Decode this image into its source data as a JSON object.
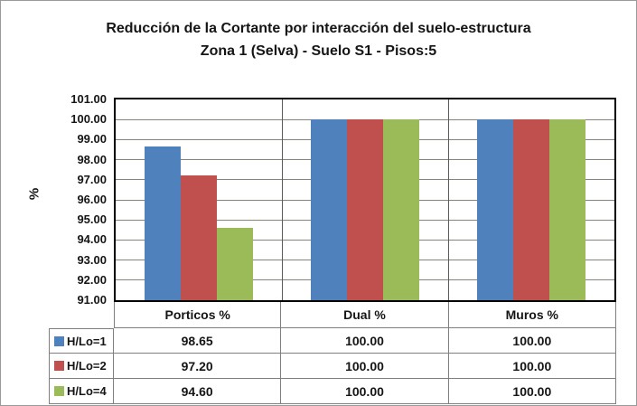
{
  "title": {
    "line1": "Reducción de la Cortante por interacción del suelo-estructura",
    "line2": "Zona 1 (Selva) - Suelo S1 - Pisos:5"
  },
  "chart_data": {
    "type": "bar",
    "title": "Reducción de la Cortante por interacción del suelo-estructura",
    "subtitle": "Zona 1 (Selva) - Suelo S1 - Pisos:5",
    "xlabel": "",
    "ylabel": "%",
    "ylim": [
      91,
      101
    ],
    "ytick_step": 1,
    "ytick_labels": [
      "101.00",
      "100.00",
      "99.00",
      "98.00",
      "97.00",
      "96.00",
      "95.00",
      "94.00",
      "93.00",
      "92.00",
      "91.00"
    ],
    "grid": true,
    "legend_position": "data-table-left",
    "categories": [
      "Porticos %",
      "Dual %",
      "Muros %"
    ],
    "series": [
      {
        "name": "H/Lo=1",
        "color": "#4F81BD",
        "values": [
          98.65,
          100.0,
          100.0
        ]
      },
      {
        "name": "H/Lo=2",
        "color": "#C0504D",
        "values": [
          97.2,
          100.0,
          100.0
        ]
      },
      {
        "name": "H/Lo=4",
        "color": "#9BBB59",
        "values": [
          94.6,
          100.0,
          100.0
        ]
      }
    ],
    "colors": {
      "bar_blue": "#4F81BD",
      "bar_red": "#C0504D",
      "bar_green": "#9BBB59",
      "gridline": "#848478",
      "plot_border": "#000000",
      "table_border": "#7F7F7F"
    }
  },
  "table": {
    "col_headers": [
      "Porticos %",
      "Dual %",
      "Muros %"
    ],
    "rows": [
      {
        "key": "H/Lo=1",
        "values": [
          "98.65",
          "100.00",
          "100.00"
        ]
      },
      {
        "key": "H/Lo=2",
        "values": [
          "97.20",
          "100.00",
          "100.00"
        ]
      },
      {
        "key": "H/Lo=4",
        "values": [
          "94.60",
          "100.00",
          "100.00"
        ]
      }
    ]
  }
}
